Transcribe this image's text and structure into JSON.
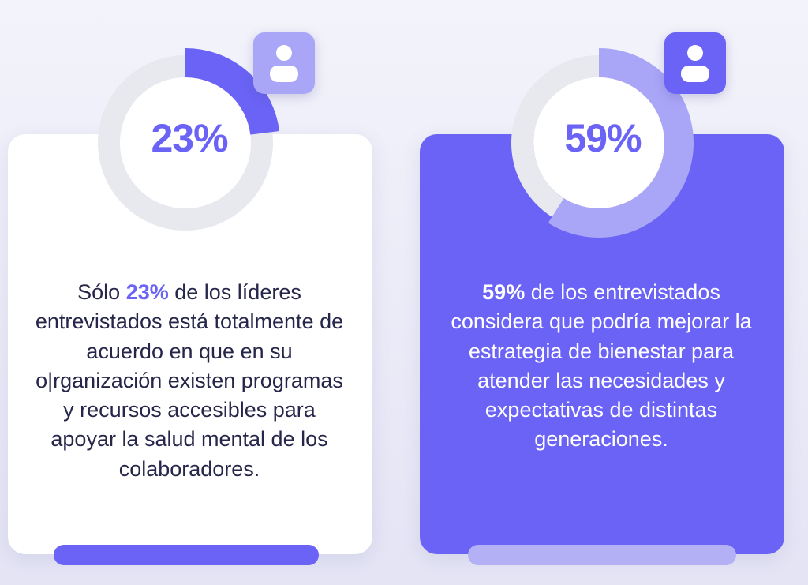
{
  "cards": [
    {
      "percent_label": "23%",
      "percent_value": 23,
      "highlight": "23%",
      "text_before": "Sólo ",
      "text_after": " de los líderes entrevistados está totalmente de acuerdo en que en su o|rganización existen programas y recursos accesibles para apoyar la salud mental de los colaboradores.",
      "icon": "user-icon"
    },
    {
      "percent_label": "59%",
      "percent_value": 59,
      "highlight": "59%",
      "text_before": "",
      "text_after": " de los entrevistados considera que podría mejorar la estrategia de bienestar para atender las necesidades y expectativas de distintas generaciones.",
      "icon": "user-icon"
    }
  ],
  "colors": {
    "accent": "#6a63f5",
    "accent_light": "#a9a5f7",
    "ring_track": "#e8e9ef",
    "card_light_bg": "#ffffff",
    "text_dark": "#26264a"
  }
}
